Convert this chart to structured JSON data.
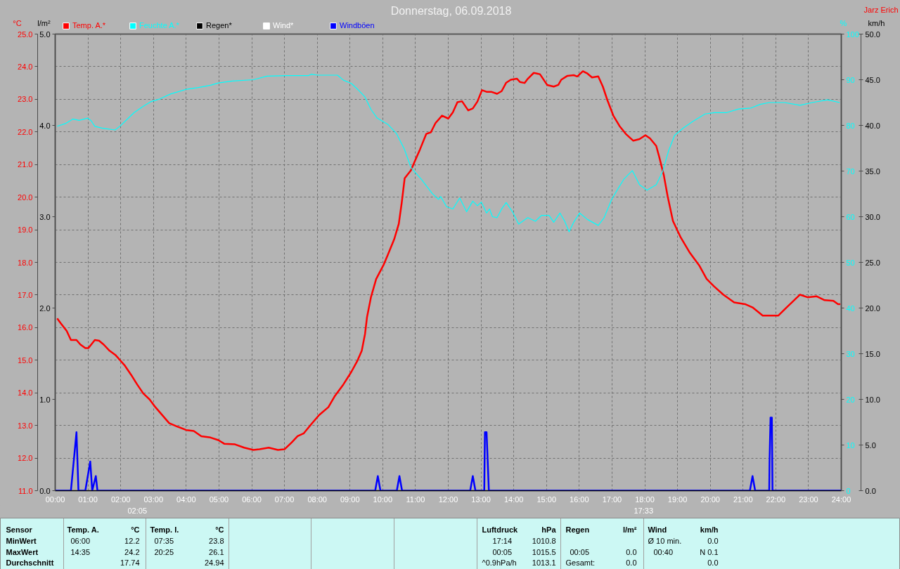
{
  "chart_data": [
    {
      "type": "line",
      "title": "Donnerstag, 06.09.2018",
      "annotations": [
        "Jarz Erich",
        "02:05",
        "17:33",
        "l/m²",
        "0.0",
        "1.0",
        "2.0",
        "3.0",
        "4.0",
        "5.0"
      ],
      "xlim": [
        0,
        24
      ],
      "xticks": [
        {
          "value": 0,
          "label": "00:00"
        },
        {
          "value": 1,
          "label": "01:00"
        },
        {
          "value": 2,
          "label": "02:00"
        },
        {
          "value": 3,
          "label": "03:00"
        },
        {
          "value": 4,
          "label": "04:00"
        },
        {
          "value": 5,
          "label": "05:00"
        },
        {
          "value": 6,
          "label": "06:00"
        },
        {
          "value": 7,
          "label": "07:00"
        },
        {
          "value": 8,
          "label": "08:00"
        },
        {
          "value": 9,
          "label": "09:00"
        },
        {
          "value": 10,
          "label": "10:00"
        },
        {
          "value": 11,
          "label": "11:00"
        },
        {
          "value": 12,
          "label": "12:00"
        },
        {
          "value": 13,
          "label": "13:00"
        },
        {
          "value": 14,
          "label": "14:00"
        },
        {
          "value": 15,
          "label": "15:00"
        },
        {
          "value": 16,
          "label": "16:00"
        },
        {
          "value": 17,
          "label": "17:00"
        },
        {
          "value": 18,
          "label": "18:00"
        },
        {
          "value": 19,
          "label": "19:00"
        },
        {
          "value": 20,
          "label": "20:00"
        },
        {
          "value": 21,
          "label": "21:00"
        },
        {
          "value": 22,
          "label": "22:00"
        },
        {
          "value": 23,
          "label": "23:00"
        },
        {
          "value": 24,
          "label": "24:00"
        }
      ],
      "ylabel": "°C",
      "ylim": [
        11,
        25
      ],
      "yticks": [
        {
          "value": 11,
          "label": "11.0"
        },
        {
          "value": 12,
          "label": "12.0"
        },
        {
          "value": 13,
          "label": "13.0"
        },
        {
          "value": 14,
          "label": "14.0"
        },
        {
          "value": 15,
          "label": "15.0"
        },
        {
          "value": 16,
          "label": "16.0"
        },
        {
          "value": 17,
          "label": "17.0"
        },
        {
          "value": 18,
          "label": "18.0"
        },
        {
          "value": 19,
          "label": "19.0"
        },
        {
          "value": 20,
          "label": "20.0"
        },
        {
          "value": 21,
          "label": "21.0"
        },
        {
          "value": 22,
          "label": "22.0"
        },
        {
          "value": 23,
          "label": "23.0"
        },
        {
          "value": 24,
          "label": "24.0"
        },
        {
          "value": 25,
          "label": "25.0"
        }
      ],
      "y2label": "%",
      "y2lim": [
        0,
        100
      ],
      "y2ticks": [
        0,
        10,
        20,
        30,
        40,
        50,
        60,
        70,
        80,
        90,
        100
      ],
      "y3label": "km/h",
      "y3lim": [
        0,
        50
      ],
      "y3ticks": [
        {
          "value": 0,
          "label": "0.0"
        },
        {
          "value": 5,
          "label": "5.0"
        },
        {
          "value": 10,
          "label": "10.0"
        },
        {
          "value": 15,
          "label": "15.0"
        },
        {
          "value": 20,
          "label": "20.0"
        },
        {
          "value": 25,
          "label": "25.0"
        },
        {
          "value": 30,
          "label": "30.0"
        },
        {
          "value": 35,
          "label": "35.0"
        },
        {
          "value": 40,
          "label": "40.0"
        },
        {
          "value": 45,
          "label": "45.0"
        },
        {
          "value": 50,
          "label": "50.0"
        }
      ],
      "grid": true,
      "legend": "top left",
      "series": [
        {
          "name": "Temp. A.*",
          "color": "#ff0000",
          "axis": "y",
          "x": [
            0.06,
            0.17,
            0.35,
            0.48,
            0.65,
            0.77,
            0.92,
            1.01,
            1.1,
            1.21,
            1.34,
            1.48,
            1.66,
            1.85,
            1.99,
            2.13,
            2.32,
            2.5,
            2.69,
            2.88,
            3.06,
            3.3,
            3.48,
            3.72,
            4.0,
            4.23,
            4.46,
            4.74,
            4.98,
            5.16,
            5.49,
            5.77,
            6.05,
            6.24,
            6.52,
            6.8,
            7.0,
            7.22,
            7.4,
            7.59,
            7.82,
            8.06,
            8.34,
            8.53,
            8.8,
            9.04,
            9.22,
            9.36,
            9.46,
            9.52,
            9.64,
            9.8,
            10.02,
            10.16,
            10.35,
            10.49,
            10.58,
            10.67,
            10.86,
            11.0,
            11.14,
            11.33,
            11.47,
            11.61,
            11.81,
            12.0,
            12.14,
            12.28,
            12.42,
            12.61,
            12.75,
            12.89,
            13.03,
            13.17,
            13.31,
            13.49,
            13.63,
            13.77,
            13.91,
            14.1,
            14.19,
            14.33,
            14.43,
            14.61,
            14.8,
            15.02,
            15.22,
            15.36,
            15.45,
            15.64,
            15.83,
            15.94,
            16.11,
            16.25,
            16.39,
            16.58,
            16.72,
            16.86,
            17.04,
            17.23,
            17.42,
            17.65,
            17.84,
            18.02,
            18.16,
            18.35,
            18.44,
            18.58,
            18.7,
            18.86,
            19.1,
            19.38,
            19.66,
            19.89,
            20.12,
            20.4,
            20.73,
            21.06,
            21.29,
            21.6,
            21.8,
            22.08,
            22.32,
            22.74,
            22.97,
            23.25,
            23.49,
            23.76,
            23.9,
            23.97
          ],
          "values": [
            16.28,
            16.13,
            15.9,
            15.62,
            15.62,
            15.48,
            15.37,
            15.37,
            15.48,
            15.62,
            15.6,
            15.48,
            15.29,
            15.15,
            14.99,
            14.83,
            14.55,
            14.26,
            13.98,
            13.8,
            13.56,
            13.28,
            13.07,
            12.97,
            12.86,
            12.83,
            12.67,
            12.63,
            12.55,
            12.44,
            12.42,
            12.32,
            12.25,
            12.27,
            12.32,
            12.25,
            12.27,
            12.48,
            12.67,
            12.76,
            13.04,
            13.32,
            13.56,
            13.89,
            14.26,
            14.64,
            14.97,
            15.29,
            15.81,
            16.32,
            16.93,
            17.49,
            17.91,
            18.24,
            18.71,
            19.18,
            19.83,
            20.58,
            20.82,
            21.15,
            21.47,
            21.94,
            21.99,
            22.27,
            22.5,
            22.41,
            22.6,
            22.91,
            22.94,
            22.66,
            22.72,
            22.93,
            23.28,
            23.23,
            23.23,
            23.17,
            23.25,
            23.51,
            23.6,
            23.63,
            23.53,
            23.5,
            23.63,
            23.81,
            23.77,
            23.44,
            23.39,
            23.44,
            23.6,
            23.72,
            23.74,
            23.7,
            23.86,
            23.79,
            23.67,
            23.7,
            23.39,
            22.97,
            22.5,
            22.18,
            21.94,
            21.73,
            21.78,
            21.9,
            21.8,
            21.57,
            21.24,
            20.68,
            20.02,
            19.27,
            18.76,
            18.29,
            17.91,
            17.49,
            17.26,
            17.01,
            16.77,
            16.72,
            16.62,
            16.37,
            16.37,
            16.37,
            16.61,
            17.01,
            16.93,
            16.96,
            16.84,
            16.82,
            16.72,
            16.72
          ]
        },
        {
          "name": "Feuchte A.*",
          "color": "#00ffff",
          "axis": "y2",
          "x": [
            0.06,
            0.31,
            0.54,
            0.73,
            0.99,
            1.1,
            1.21,
            1.43,
            1.83,
            1.99,
            2.22,
            2.41,
            2.69,
            2.92,
            3.16,
            3.53,
            4.0,
            4.37,
            4.74,
            4.98,
            5.4,
            6.05,
            6.47,
            7.08,
            7.73,
            7.82,
            8.01,
            8.62,
            8.8,
            9.04,
            9.22,
            9.46,
            9.64,
            9.83,
            10.16,
            10.42,
            10.66,
            10.86,
            11.19,
            11.51,
            11.7,
            11.77,
            11.95,
            12.14,
            12.35,
            12.56,
            12.75,
            12.89,
            13.01,
            13.17,
            13.26,
            13.35,
            13.49,
            13.63,
            13.77,
            13.96,
            14.15,
            14.43,
            14.66,
            14.85,
            15.08,
            15.22,
            15.41,
            15.55,
            15.69,
            15.83,
            16.01,
            16.25,
            16.58,
            16.76,
            16.99,
            17.18,
            17.37,
            17.62,
            17.84,
            18.07,
            18.35,
            18.54,
            18.73,
            18.91,
            19.19,
            19.47,
            19.84,
            20.12,
            20.5,
            20.87,
            21.24,
            21.52,
            21.8,
            22.27,
            22.74,
            23.11,
            23.58,
            23.95
          ],
          "values": [
            79.8,
            80.4,
            81.4,
            81.1,
            81.6,
            81.0,
            79.8,
            79.4,
            79.0,
            79.9,
            81.5,
            82.8,
            84.2,
            85.2,
            85.7,
            86.9,
            87.9,
            88.3,
            88.8,
            89.3,
            89.7,
            90.0,
            90.8,
            90.9,
            90.9,
            91.2,
            91.0,
            91.0,
            89.9,
            89.2,
            88.0,
            86.2,
            83.5,
            81.6,
            80.2,
            78.2,
            74.8,
            70.8,
            68.1,
            65.1,
            63.8,
            64.4,
            62.2,
            61.7,
            64.1,
            61.1,
            63.4,
            62.4,
            63.2,
            60.8,
            61.7,
            60.0,
            59.8,
            61.7,
            63.1,
            61.1,
            58.4,
            59.8,
            59.0,
            60.3,
            60.3,
            58.8,
            60.8,
            59.1,
            56.7,
            58.8,
            60.8,
            59.4,
            58.1,
            59.8,
            63.8,
            66.1,
            68.3,
            70.1,
            67.0,
            65.8,
            67.0,
            69.8,
            74.5,
            77.8,
            79.5,
            80.9,
            82.5,
            82.8,
            82.8,
            83.6,
            83.8,
            84.6,
            85.0,
            85.0,
            84.4,
            85.0,
            85.6,
            85.0
          ]
        },
        {
          "name": "Regen*",
          "color": "#000000",
          "values": [
            null
          ]
        },
        {
          "name": "Wind*",
          "color": "#ffffff",
          "axis": "y3",
          "values": [
            null
          ]
        },
        {
          "name": "Windböen",
          "color": "#0000ff",
          "axis": "y3",
          "x": [
            0,
            0.48,
            0.65,
            0.71,
            0.92,
            1.07,
            1.13,
            1.24,
            1.29,
            9.77,
            9.85,
            9.93,
            10.43,
            10.51,
            10.59,
            12.67,
            12.75,
            12.83,
            13.1,
            13.12,
            13.17,
            13.24,
            21.21,
            21.29,
            21.37,
            21.8,
            21.81,
            21.84,
            21.88,
            21.9,
            24
          ],
          "values": [
            0,
            0,
            6.4,
            0,
            0,
            3.2,
            0,
            1.6,
            0,
            0,
            1.6,
            0,
            0,
            1.6,
            0,
            0,
            1.6,
            0,
            0,
            6.4,
            6.4,
            0,
            0,
            1.6,
            0,
            0,
            3.2,
            8.0,
            8.0,
            0,
            0
          ]
        }
      ]
    },
    {
      "type": "other",
      "annotations": [
        "Sensor",
        "Temp. A.",
        "°C",
        "Temp. I.",
        "°C",
        "Luftdruck",
        "hPa",
        "Regen",
        "l/m²",
        "Wind",
        "km/h",
        "MinWert",
        "06:00",
        "12.2",
        "07:35",
        "23.8",
        "17:14",
        "1010.8",
        "Ø 10 min.",
        "0.0",
        "MaxWert",
        "14:35",
        "24.2",
        "20:25",
        "26.1",
        "00:05",
        "1015.5",
        "00:05",
        "0.0",
        "00:40",
        "N 0.1",
        "Durchschnitt",
        "17.74",
        "24.94",
        "^0.9hPa/h",
        "1013.1",
        "Gesamt:",
        "0.0",
        "0.0"
      ]
    }
  ]
}
